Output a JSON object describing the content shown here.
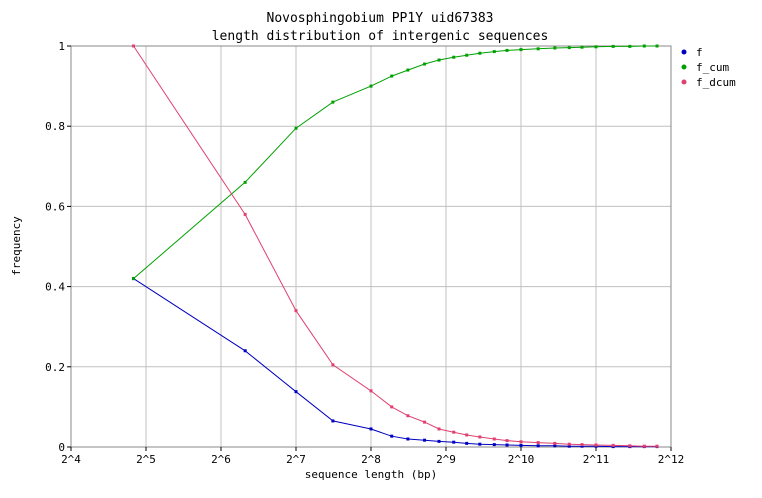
{
  "chart_data": {
    "type": "line",
    "title": "Novosphingobium PP1Y uid67383",
    "subtitle": "length distribution of intergenic sequences",
    "xlabel": "sequence length (bp)",
    "ylabel": "frequency",
    "x_scale": "log2",
    "xlim": [
      16,
      4096
    ],
    "ylim": [
      0,
      1
    ],
    "grid": true,
    "legend_position": "right",
    "x_ticks": [
      {
        "v": 16,
        "label": "2^4"
      },
      {
        "v": 32,
        "label": "2^5"
      },
      {
        "v": 64,
        "label": "2^6"
      },
      {
        "v": 128,
        "label": "2^7"
      },
      {
        "v": 256,
        "label": "2^8"
      },
      {
        "v": 512,
        "label": "2^9"
      },
      {
        "v": 1024,
        "label": "2^10"
      },
      {
        "v": 2048,
        "label": "2^11"
      },
      {
        "v": 4096,
        "label": "2^12"
      }
    ],
    "y_ticks": [
      {
        "v": 0,
        "label": "0"
      },
      {
        "v": 0.2,
        "label": "0.2"
      },
      {
        "v": 0.4,
        "label": "0.4"
      },
      {
        "v": 0.6,
        "label": "0.6"
      },
      {
        "v": 0.8,
        "label": "0.8"
      },
      {
        "v": 1,
        "label": "1"
      }
    ],
    "series": [
      {
        "name": "f",
        "color": "#0000c0",
        "points": [
          [
            28.5,
            0.42
          ],
          [
            80,
            0.24
          ],
          [
            128,
            0.138
          ],
          [
            180,
            0.065
          ],
          [
            256,
            0.045
          ],
          [
            310,
            0.027
          ],
          [
            360,
            0.02
          ],
          [
            420,
            0.017
          ],
          [
            480,
            0.014
          ],
          [
            550,
            0.012
          ],
          [
            620,
            0.009
          ],
          [
            700,
            0.007
          ],
          [
            800,
            0.006
          ],
          [
            900,
            0.005
          ],
          [
            1024,
            0.004
          ],
          [
            1200,
            0.003
          ],
          [
            1400,
            0.003
          ],
          [
            1600,
            0.002
          ],
          [
            1800,
            0.002
          ],
          [
            2048,
            0.002
          ],
          [
            2400,
            0.001
          ],
          [
            2800,
            0.001
          ],
          [
            3200,
            0.001
          ],
          [
            3600,
            0.001
          ]
        ]
      },
      {
        "name": "f_cum",
        "color": "#00a000",
        "points": [
          [
            28.5,
            0.42
          ],
          [
            80,
            0.66
          ],
          [
            128,
            0.795
          ],
          [
            180,
            0.86
          ],
          [
            256,
            0.9
          ],
          [
            310,
            0.925
          ],
          [
            360,
            0.94
          ],
          [
            420,
            0.955
          ],
          [
            480,
            0.965
          ],
          [
            550,
            0.972
          ],
          [
            620,
            0.977
          ],
          [
            700,
            0.982
          ],
          [
            800,
            0.986
          ],
          [
            900,
            0.989
          ],
          [
            1024,
            0.991
          ],
          [
            1200,
            0.993
          ],
          [
            1400,
            0.995
          ],
          [
            1600,
            0.996
          ],
          [
            1800,
            0.997
          ],
          [
            2048,
            0.998
          ],
          [
            2400,
            0.999
          ],
          [
            2800,
            0.999
          ],
          [
            3200,
            1.0
          ],
          [
            3600,
            1.0
          ]
        ]
      },
      {
        "name": "f_dcum",
        "color": "#e04070",
        "points": [
          [
            28.5,
            1.0
          ],
          [
            80,
            0.58
          ],
          [
            128,
            0.34
          ],
          [
            180,
            0.205
          ],
          [
            256,
            0.14
          ],
          [
            310,
            0.1
          ],
          [
            360,
            0.078
          ],
          [
            420,
            0.062
          ],
          [
            480,
            0.045
          ],
          [
            550,
            0.037
          ],
          [
            620,
            0.03
          ],
          [
            700,
            0.025
          ],
          [
            800,
            0.02
          ],
          [
            900,
            0.016
          ],
          [
            1024,
            0.013
          ],
          [
            1200,
            0.011
          ],
          [
            1400,
            0.009
          ],
          [
            1600,
            0.007
          ],
          [
            1800,
            0.006
          ],
          [
            2048,
            0.005
          ],
          [
            2400,
            0.004
          ],
          [
            2800,
            0.003
          ],
          [
            3200,
            0.002
          ],
          [
            3600,
            0.002
          ]
        ]
      }
    ]
  }
}
